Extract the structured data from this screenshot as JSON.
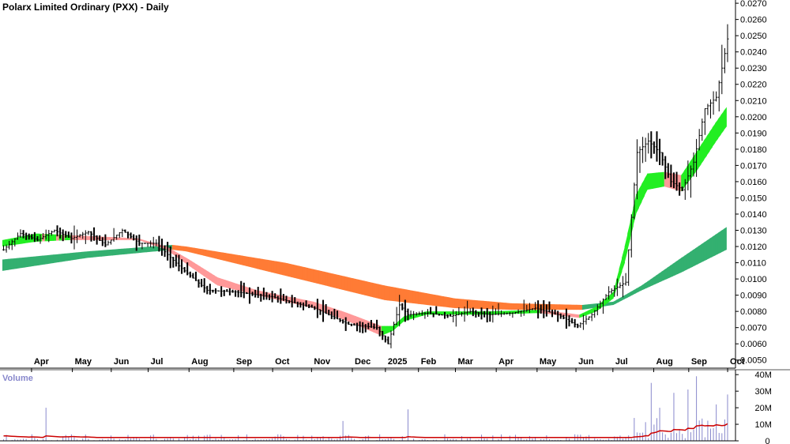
{
  "chart_data": [
    {
      "type": "ohlc",
      "title": "Polarx Limited Ordinary (PXX) - Daily",
      "ylim": [
        0.0045,
        0.0272
      ],
      "y_ticks": [
        "0.0050",
        "0.0060",
        "0.0070",
        "0.0080",
        "0.0090",
        "0.0100",
        "0.0110",
        "0.0120",
        "0.0130",
        "0.0140",
        "0.0150",
        "0.0160",
        "0.0170",
        "0.0180",
        "0.0190",
        "0.0200",
        "0.0210",
        "0.0220",
        "0.0230",
        "0.0240",
        "0.0250",
        "0.0260",
        "0.0270"
      ],
      "x_ticks": [
        "Apr",
        "May",
        "Jun",
        "Jul",
        "Aug",
        "Sep",
        "Oct",
        "Nov",
        "Dec",
        "2025",
        "Feb",
        "Mar",
        "Apr",
        "May",
        "Jun",
        "Jul",
        "Aug",
        "Sep",
        "Oct"
      ],
      "grid": false,
      "bar_color": "#000000",
      "ribbons": [
        {
          "key": "short",
          "up_color": "#22ee22",
          "down_color": "#ff9999"
        },
        {
          "key": "long",
          "up_color": "#33b070",
          "down_color": "#ff7b35"
        }
      ],
      "price_path": [
        [
          0,
          0.0118
        ],
        [
          6,
          0.0128
        ],
        [
          12,
          0.0124
        ],
        [
          18,
          0.013
        ],
        [
          24,
          0.0125
        ],
        [
          30,
          0.0129
        ],
        [
          36,
          0.0121
        ],
        [
          42,
          0.013
        ],
        [
          48,
          0.0122
        ],
        [
          54,
          0.0122
        ],
        [
          62,
          0.0108
        ],
        [
          72,
          0.0093
        ],
        [
          82,
          0.0092
        ],
        [
          95,
          0.0089
        ],
        [
          110,
          0.0082
        ],
        [
          122,
          0.0072
        ],
        [
          132,
          0.007
        ],
        [
          136,
          0.006
        ],
        [
          140,
          0.0084
        ],
        [
          143,
          0.0078
        ],
        [
          150,
          0.0079
        ],
        [
          158,
          0.0077
        ],
        [
          165,
          0.008
        ],
        [
          172,
          0.0078
        ],
        [
          180,
          0.0079
        ],
        [
          188,
          0.0082
        ],
        [
          196,
          0.0078
        ],
        [
          203,
          0.0071
        ],
        [
          208,
          0.0078
        ],
        [
          214,
          0.0092
        ],
        [
          220,
          0.0098
        ],
        [
          224,
          0.0178
        ],
        [
          228,
          0.0185
        ],
        [
          232,
          0.0178
        ],
        [
          236,
          0.016
        ],
        [
          240,
          0.0155
        ],
        [
          244,
          0.0172
        ],
        [
          248,
          0.0205
        ],
        [
          252,
          0.0212
        ],
        [
          256,
          0.0248
        ]
      ],
      "short_ribbon": [
        [
          0,
          0.012,
          0.0124
        ],
        [
          12,
          0.0123,
          0.0128
        ],
        [
          24,
          0.0124,
          0.0127
        ],
        [
          36,
          0.0124,
          0.0126
        ],
        [
          48,
          0.0124,
          0.0125
        ],
        [
          58,
          0.0118,
          0.012
        ],
        [
          66,
          0.0108,
          0.0112
        ],
        [
          76,
          0.0096,
          0.0101
        ],
        [
          90,
          0.009,
          0.0093
        ],
        [
          110,
          0.0082,
          0.0086
        ],
        [
          122,
          0.0074,
          0.0079
        ],
        [
          134,
          0.0065,
          0.0071
        ],
        [
          138,
          0.0068,
          0.0071
        ],
        [
          142,
          0.0074,
          0.0077
        ],
        [
          150,
          0.0078,
          0.008
        ],
        [
          160,
          0.0078,
          0.008
        ],
        [
          172,
          0.0078,
          0.008
        ],
        [
          190,
          0.0079,
          0.0081
        ],
        [
          204,
          0.0076,
          0.0078
        ],
        [
          210,
          0.008,
          0.0083
        ],
        [
          216,
          0.0088,
          0.0092
        ],
        [
          220,
          0.011,
          0.012
        ],
        [
          224,
          0.014,
          0.0152
        ],
        [
          228,
          0.0155,
          0.0165
        ],
        [
          234,
          0.0157,
          0.0166
        ],
        [
          240,
          0.0154,
          0.0164
        ],
        [
          246,
          0.0168,
          0.018
        ],
        [
          252,
          0.0184,
          0.0196
        ],
        [
          256,
          0.0194,
          0.0206
        ]
      ],
      "long_ribbon": [
        [
          0,
          0.0105,
          0.0112
        ],
        [
          30,
          0.0113,
          0.0117
        ],
        [
          60,
          0.0118,
          0.0121
        ],
        [
          65,
          0.0117,
          0.012
        ],
        [
          100,
          0.0102,
          0.011
        ],
        [
          135,
          0.0087,
          0.0096
        ],
        [
          160,
          0.0082,
          0.0088
        ],
        [
          180,
          0.0081,
          0.0085
        ],
        [
          205,
          0.0081,
          0.0084
        ],
        [
          216,
          0.0084,
          0.0086
        ],
        [
          226,
          0.0093,
          0.0096
        ],
        [
          240,
          0.0104,
          0.0113
        ],
        [
          256,
          0.0118,
          0.0132
        ]
      ]
    },
    {
      "type": "bar",
      "title": "Volume",
      "ylim": [
        0,
        42000000
      ],
      "y_ticks": [
        "0",
        "10M",
        "20M",
        "30M",
        "40M"
      ],
      "bar_color": "#8888cc",
      "average_line_color": "#cc0000",
      "spikes": [
        [
          15,
          20000000
        ],
        [
          120,
          12000000
        ],
        [
          143,
          19000000
        ],
        [
          229,
          35000000
        ],
        [
          237,
          29000000
        ],
        [
          245,
          39000000
        ],
        [
          242,
          31000000
        ],
        [
          252,
          22000000
        ],
        [
          256,
          28000000
        ],
        [
          232,
          20000000
        ]
      ]
    }
  ]
}
